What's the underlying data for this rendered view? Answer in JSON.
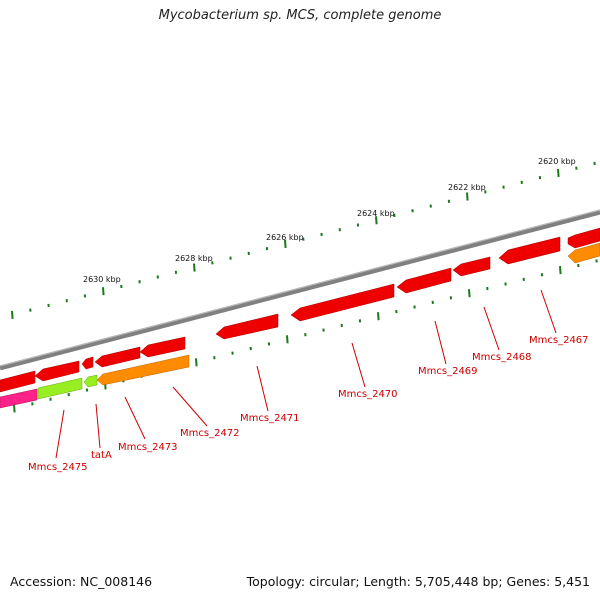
{
  "title": "Mycobacterium sp. MCS, complete genome",
  "footer": {
    "accession": "Accession: NC_008146",
    "summary": "Topology: circular; Length: 5,705,448 bp; Genes: 5,451"
  },
  "colors": {
    "backbone": "#808080",
    "red_gene": "#ee0000",
    "orange_gene": "#ff8c00",
    "green_gene": "#99ee22",
    "pink_gene": "#ff2288",
    "tick": "#1a7a1a",
    "label": "#cc0000"
  },
  "kbp_labels": [
    "2620 kbp",
    "2622 kbp",
    "2624 kbp",
    "2626 kbp",
    "2628 kbp",
    "2630 kbp"
  ],
  "gene_labels": [
    "Mmcs_2467",
    "Mmcs_2468",
    "Mmcs_2469",
    "Mmcs_2470",
    "Mmcs_2471",
    "Mmcs_2472",
    "Mmcs_2473",
    "tatA",
    "Mmcs_2475"
  ]
}
